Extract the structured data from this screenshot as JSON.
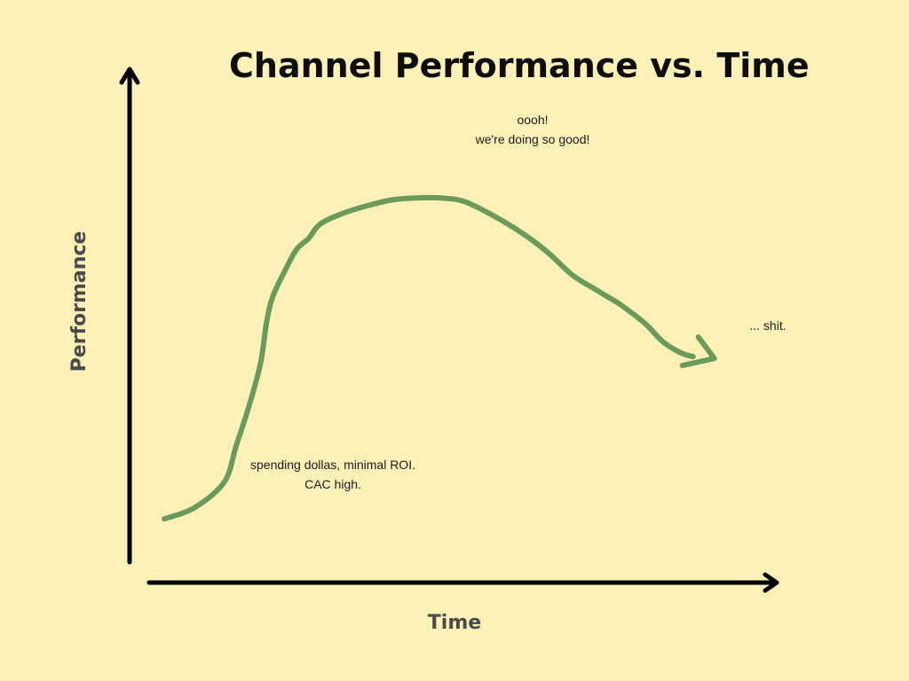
{
  "title": "Channel Performance vs. Time",
  "colors": {
    "background": "#fdf1b8",
    "curve": "#6a9a5c",
    "axis": "#000000",
    "axis_label": "#4a4a4a"
  },
  "chart_data": {
    "type": "line",
    "title": "Channel Performance vs. Time",
    "xlabel": "Time",
    "ylabel": "Performance",
    "xlim": [
      0,
      100
    ],
    "ylim": [
      0,
      100
    ],
    "grid": false,
    "legend": "none",
    "series": [
      {
        "x": [
          0,
          5,
          10,
          12,
          14,
          16,
          17,
          18,
          20,
          22,
          24,
          26,
          30,
          34,
          38,
          42,
          46,
          50,
          55,
          60,
          64,
          68,
          72,
          74,
          76,
          80,
          83,
          86,
          88
        ],
        "y": [
          5,
          8,
          15,
          25,
          35,
          47,
          58,
          65,
          72,
          78,
          81,
          85,
          88,
          90,
          91.5,
          92,
          92,
          91,
          87,
          82,
          77,
          71,
          67,
          65,
          63,
          58,
          53,
          50,
          49
        ]
      }
    ],
    "annotations": [
      {
        "lines": [
          "oooh!",
          "we're doing so good!"
        ]
      },
      {
        "lines": [
          "spending dollas, minimal ROI.",
          "CAC high."
        ]
      },
      {
        "lines": [
          "... shit."
        ]
      }
    ]
  }
}
